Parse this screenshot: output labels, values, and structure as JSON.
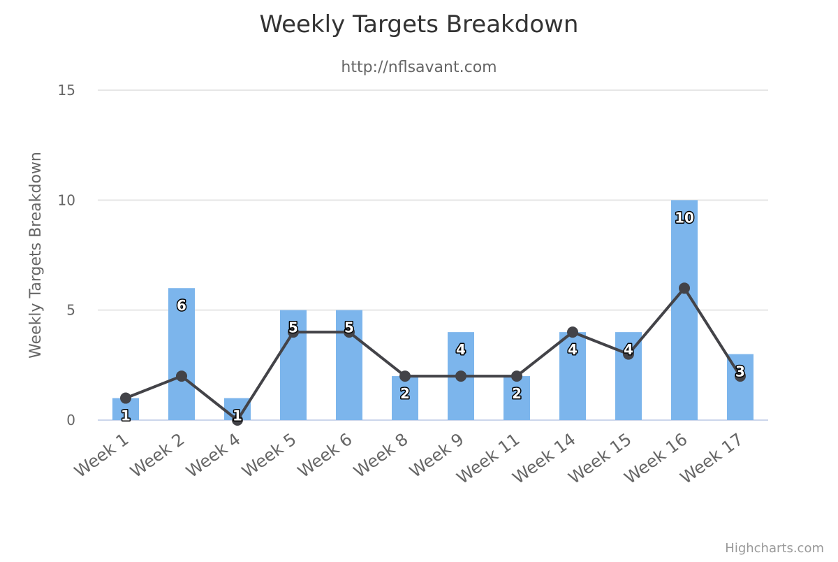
{
  "chart_data": {
    "type": "bar",
    "title": "Weekly Targets Breakdown",
    "subtitle": "http://nflsavant.com",
    "ylabel": "Weekly Targets Breakdown",
    "xlabel": "",
    "categories": [
      "Week 1",
      "Week 2",
      "Week 4",
      "Week 5",
      "Week 6",
      "Week 8",
      "Week 9",
      "Week 11",
      "Week 14",
      "Week 15",
      "Week 16",
      "Week 17"
    ],
    "ylim": [
      0,
      15
    ],
    "yticks": [
      0,
      5,
      10,
      15
    ],
    "grid": true,
    "legend": "none",
    "series": [
      {
        "type": "bar",
        "color": "#7cb5ec",
        "values": [
          1,
          6,
          1,
          5,
          5,
          2,
          4,
          2,
          4,
          4,
          10,
          3
        ],
        "data_labels": [
          "1",
          "6",
          "1",
          "5",
          "5",
          "2",
          "4",
          "2",
          "4",
          "4",
          "10",
          "3"
        ]
      },
      {
        "type": "line",
        "color": "#434348",
        "values": [
          1,
          2,
          0,
          4,
          4,
          2,
          2,
          2,
          4,
          3,
          6,
          2
        ]
      }
    ]
  },
  "credits": "Highcharts.com"
}
